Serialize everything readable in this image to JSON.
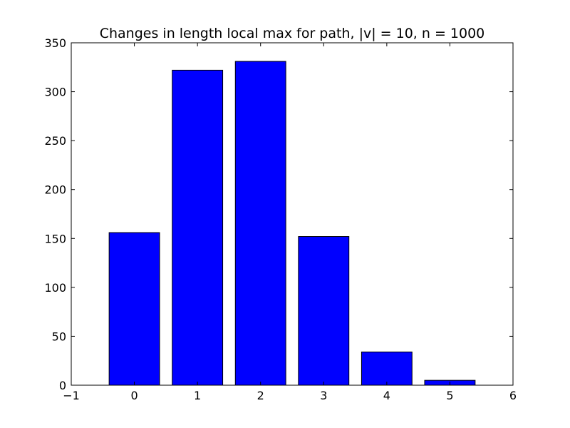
{
  "chart_data": {
    "type": "bar",
    "title": "Changes in length local max for path, |v| = 10, n = 1000",
    "xlabel": "",
    "ylabel": "",
    "x": [
      0,
      1,
      2,
      3,
      4,
      5
    ],
    "values": [
      156,
      322,
      331,
      152,
      34,
      5
    ],
    "bar_width": 0.8,
    "xlim": [
      -1,
      6
    ],
    "ylim": [
      0,
      350
    ],
    "xticks": [
      -1,
      0,
      1,
      2,
      3,
      4,
      5,
      6
    ],
    "xtick_labels": [
      "−1",
      "0",
      "1",
      "2",
      "3",
      "4",
      "5",
      "6"
    ],
    "yticks": [
      0,
      50,
      100,
      150,
      200,
      250,
      300,
      350
    ],
    "ytick_labels": [
      "0",
      "50",
      "100",
      "150",
      "200",
      "250",
      "300",
      "350"
    ],
    "grid": false,
    "bar_color": "#0000ff",
    "edge_color": "#000000"
  }
}
